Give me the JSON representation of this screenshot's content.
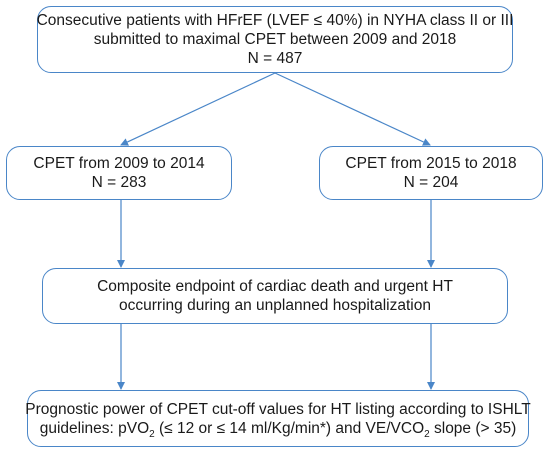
{
  "boxes": {
    "top": {
      "line1": "Consecutive patients with HFrEF (LVEF ≤ 40%) in NYHA class II or III",
      "line2": "submitted to maximal CPET between 2009 and 2018",
      "line3": "N = 487"
    },
    "left": {
      "line1": "CPET from 2009 to 2014",
      "line2": "N = 283"
    },
    "right": {
      "line1": "CPET from 2015 to 2018",
      "line2": "N = 204"
    },
    "middle": {
      "line1": "Composite endpoint of cardiac death and urgent HT",
      "line2": "occurring during an unplanned hospitalization"
    },
    "bottom": {
      "line1": "Prognostic power of CPET cut-off values for HT listing according to ISHLT",
      "line2_a": "guidelines: pVO",
      "line2_sub1": "2",
      "line2_b": " (≤ 12 or ≤ 14 ml/Kg/min*) and VE/VCO",
      "line2_sub2": "2",
      "line2_c": " slope (> 35)"
    }
  },
  "colors": {
    "border": "#4a86c8",
    "arrow": "#4a86c8",
    "text": "#1a1a1a"
  }
}
